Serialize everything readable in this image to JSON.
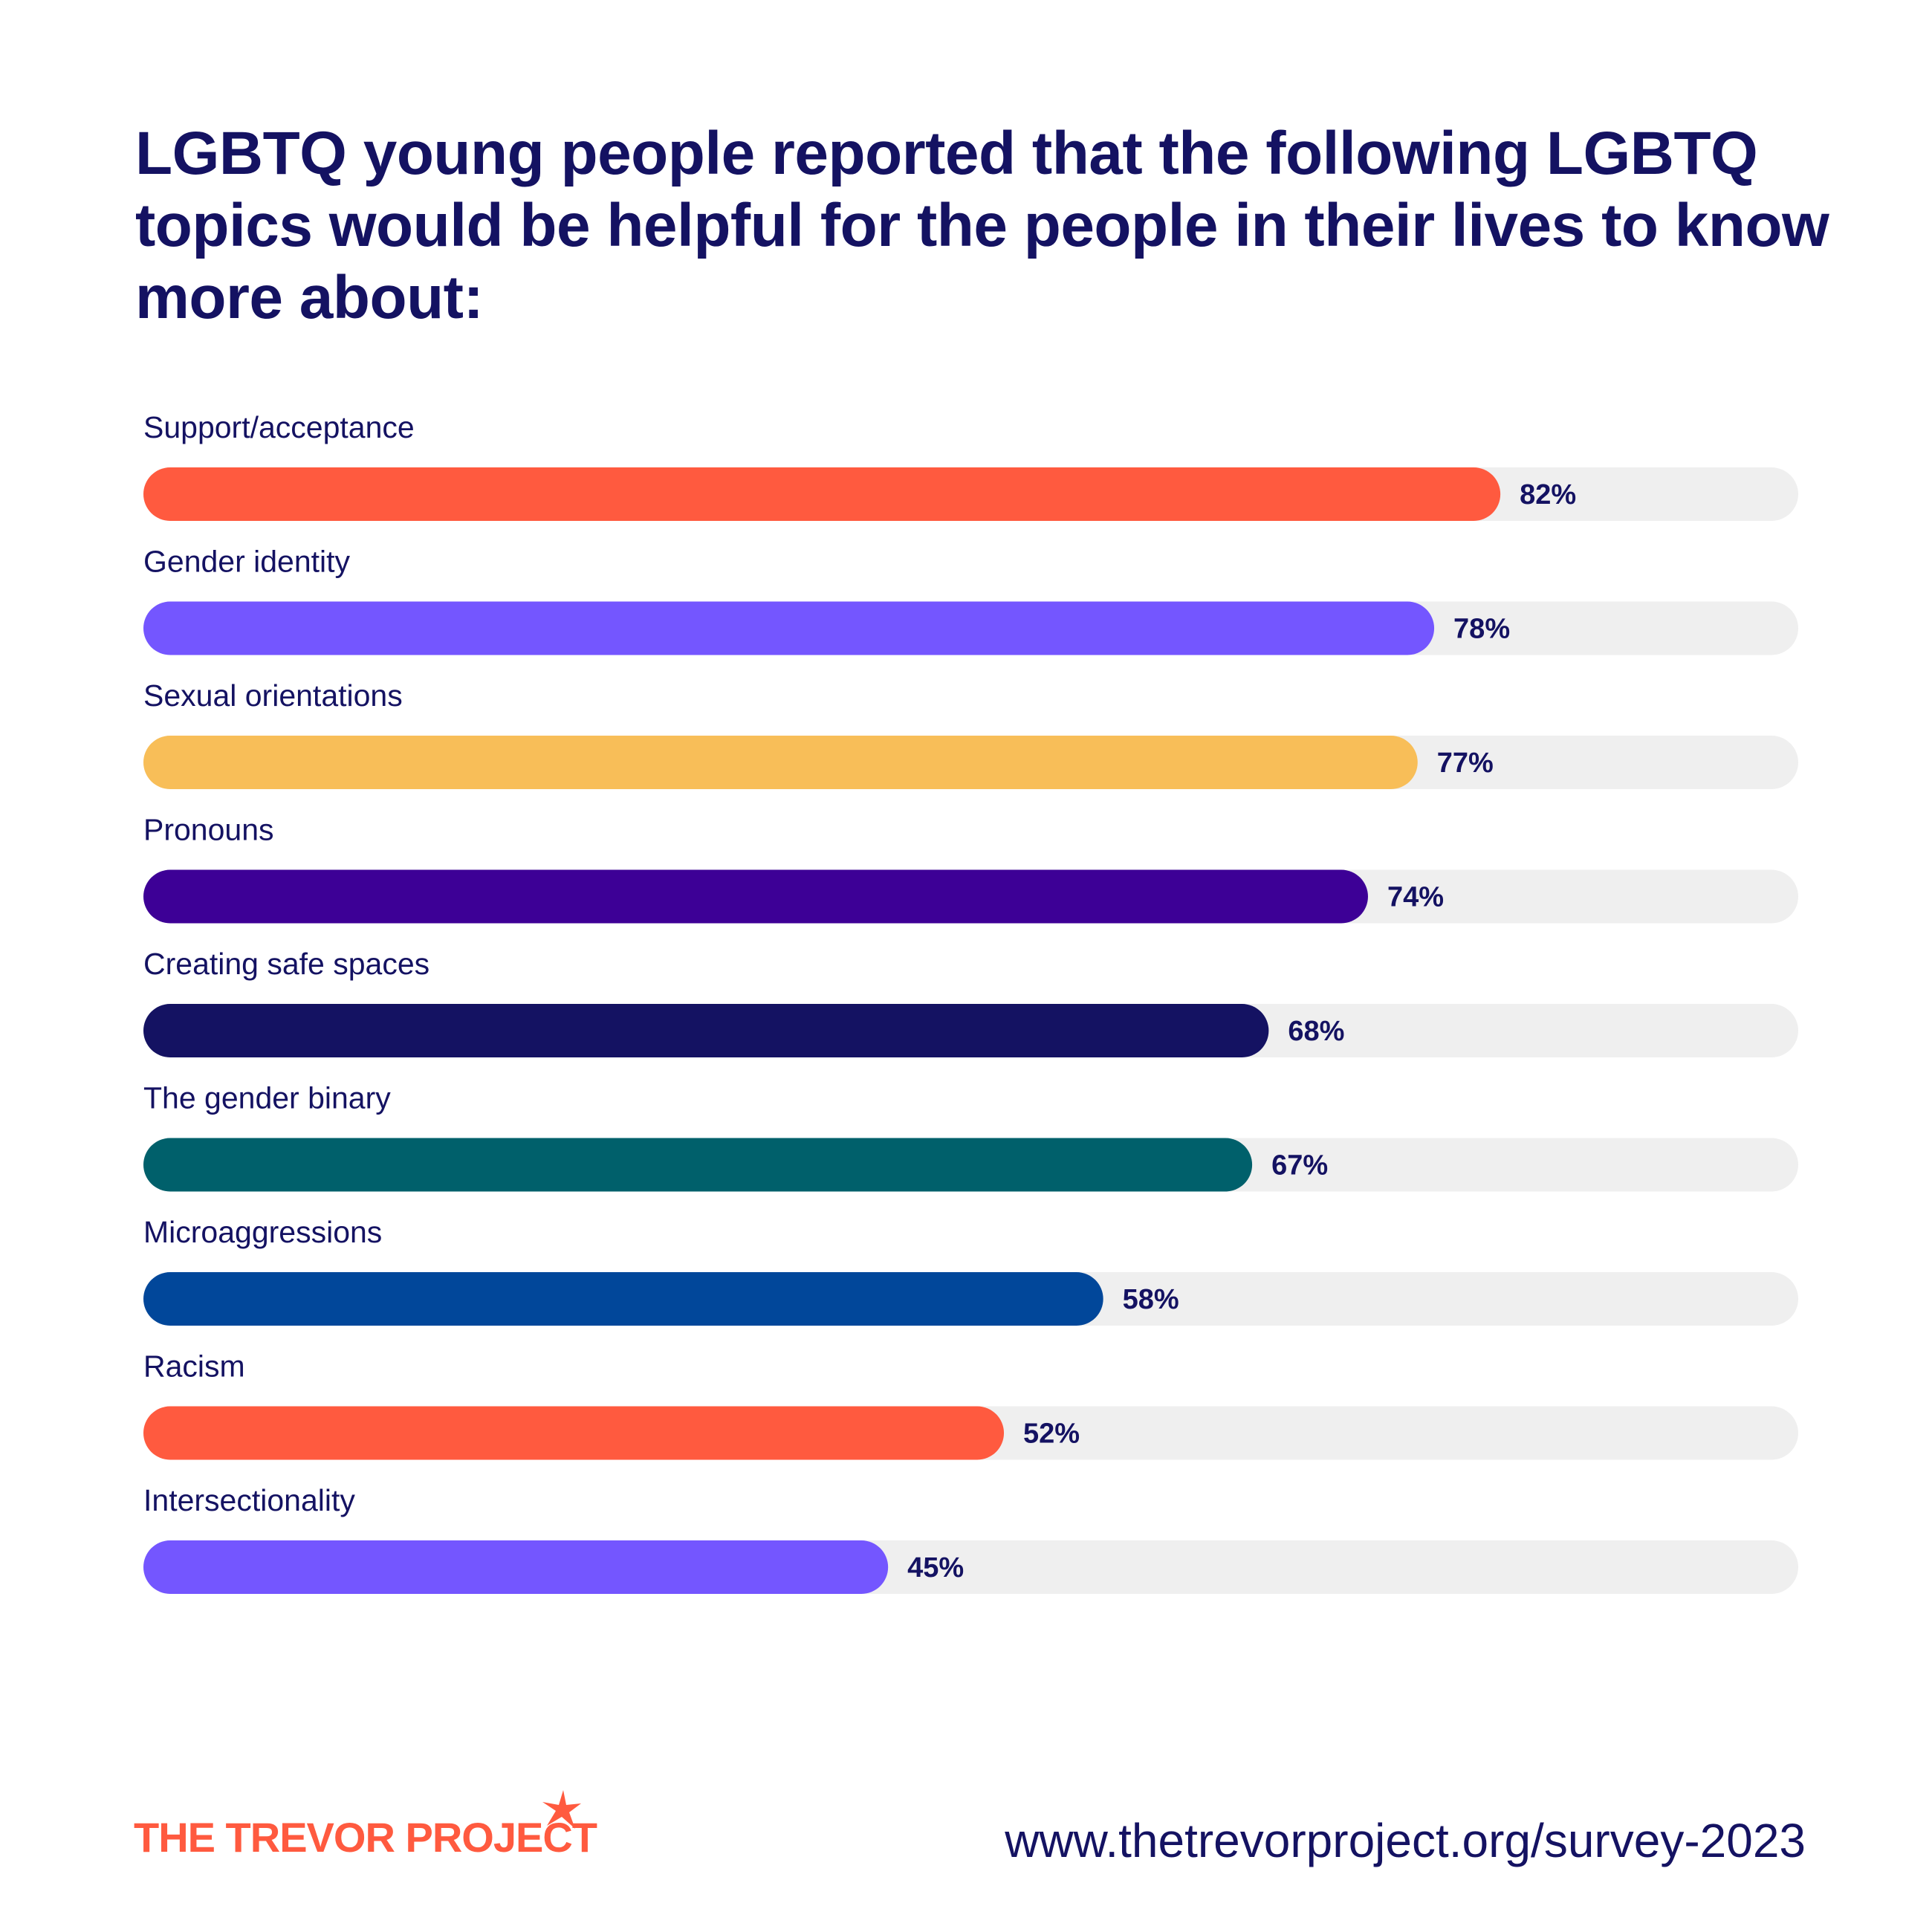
{
  "chart_data": {
    "type": "bar",
    "orientation": "horizontal",
    "title": "LGBTQ young people reported that the following LGBTQ topics would be helpful for the people in their lives to know more about:",
    "categories": [
      "Support/acceptance",
      "Gender identity",
      "Sexual orientations",
      "Pronouns",
      "Creating safe spaces",
      "The gender binary",
      "Microaggressions",
      "Racism",
      "Intersectionality"
    ],
    "values": [
      82,
      78,
      77,
      74,
      68,
      67,
      58,
      52,
      45
    ],
    "value_labels": [
      "82%",
      "78%",
      "77%",
      "74%",
      "68%",
      "67%",
      "58%",
      "52%",
      "45%"
    ],
    "colors": [
      "#ff5a3f",
      "#7456ff",
      "#f8be58",
      "#3d0096",
      "#141262",
      "#00606b",
      "#01479a",
      "#ff5a3f",
      "#7456ff"
    ],
    "track_color": "#efefef",
    "xlim": [
      0,
      100
    ]
  },
  "footer": {
    "brand": "THE TREVOR PROJECT",
    "url": "www.thetrevorproject.org/survey-2023"
  },
  "icons": {
    "brand_mark": "star-icon"
  }
}
